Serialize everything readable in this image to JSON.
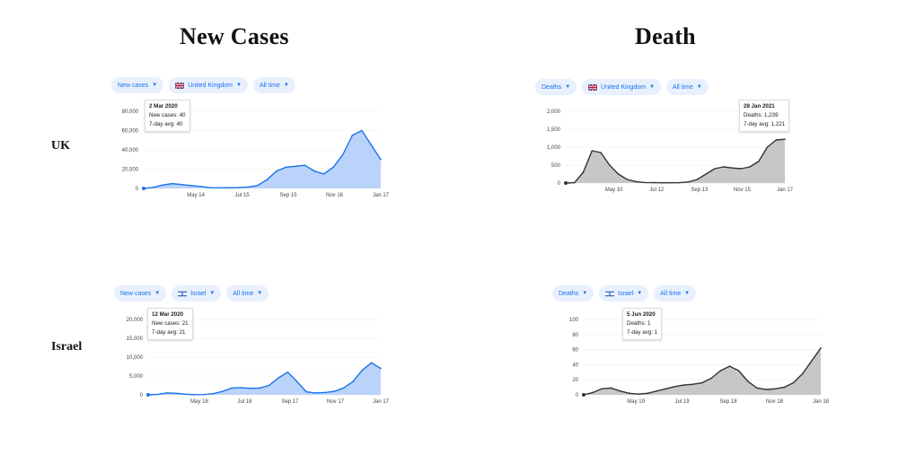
{
  "headings": {
    "left": "New Cases",
    "right": "Death"
  },
  "row_labels": {
    "uk": "UK",
    "israel": "Israel"
  },
  "panels": {
    "uk_cases": {
      "metric": "New cases",
      "country": "United Kingdom",
      "range": "All time",
      "tooltip": {
        "date": "2 Mar 2020",
        "line1": "New cases: 40",
        "line2": "7-day avg: 40"
      }
    },
    "uk_deaths": {
      "metric": "Deaths",
      "country": "United Kingdom",
      "range": "All time",
      "tooltip": {
        "date": "28 Jan 2021",
        "line1": "Deaths: 1,239",
        "line2": "7-day avg: 1,221"
      }
    },
    "il_cases": {
      "metric": "New cases",
      "country": "Israel",
      "range": "All time",
      "tooltip": {
        "date": "12 Mar 2020",
        "line1": "New cases: 21",
        "line2": "7-day avg: 21"
      }
    },
    "il_deaths": {
      "metric": "Deaths",
      "country": "Israel",
      "range": "All time",
      "tooltip": {
        "date": "5 Jun 2020",
        "line1": "Deaths: 1",
        "line2": "7-day avg: 1"
      }
    }
  },
  "colors": {
    "cases_line": "#1a73e8",
    "cases_fill": "#aecbfa",
    "deaths_line": "#333333",
    "deaths_fill": "#bdbdbd",
    "chip_bg": "#e8f0fe",
    "chip_text": "#1a73e8"
  },
  "chart_data": [
    {
      "id": "uk_cases",
      "type": "area",
      "x_ticks": [
        "May 14",
        "Jul 15",
        "Sep 15",
        "Nov 16",
        "Jan 17"
      ],
      "y_ticks": [
        "0",
        "20,000",
        "40,000",
        "60,000",
        "80,000"
      ],
      "ylim": [
        0,
        80000
      ],
      "series": [
        {
          "values": [
            0,
            1000,
            3500,
            5000,
            4000,
            3000,
            2000,
            800,
            600,
            700,
            900,
            1500,
            3000,
            9000,
            18000,
            22000,
            23000,
            24000,
            18000,
            15000,
            22000,
            35000,
            55000,
            60000,
            45000,
            30000
          ]
        }
      ]
    },
    {
      "id": "uk_deaths",
      "type": "area",
      "x_ticks": [
        "May 10",
        "Jul 12",
        "Sep 13",
        "Nov 15",
        "Jan 17"
      ],
      "y_ticks": [
        "0",
        "500",
        "1,000",
        "1,500",
        "2,000"
      ],
      "ylim": [
        0,
        2000
      ],
      "series": [
        {
          "values": [
            0,
            10,
            300,
            900,
            850,
            500,
            250,
            100,
            40,
            15,
            10,
            8,
            8,
            10,
            30,
            100,
            250,
            400,
            450,
            420,
            400,
            450,
            600,
            1000,
            1200,
            1221
          ]
        }
      ]
    },
    {
      "id": "il_cases",
      "type": "area",
      "x_ticks": [
        "May 18",
        "Jul 18",
        "Sep 17",
        "Nov 17",
        "Jan 17"
      ],
      "y_ticks": [
        "0",
        "5,000",
        "10,000",
        "15,000",
        "20,000"
      ],
      "ylim": [
        0,
        20000
      ],
      "series": [
        {
          "values": [
            0,
            100,
            500,
            400,
            150,
            50,
            80,
            300,
            900,
            1800,
            1900,
            1700,
            1800,
            2500,
            4500,
            6000,
            3500,
            800,
            500,
            600,
            900,
            1800,
            3500,
            6500,
            8500,
            7000
          ]
        }
      ]
    },
    {
      "id": "il_deaths",
      "type": "area",
      "x_ticks": [
        "May 19",
        "Jul 19",
        "Sep 18",
        "Nov 18",
        "Jan 18"
      ],
      "y_ticks": [
        "0",
        "20",
        "40",
        "60",
        "80",
        "100"
      ],
      "ylim": [
        0,
        100
      ],
      "series": [
        {
          "values": [
            0,
            3,
            8,
            9,
            5,
            2,
            1,
            2,
            5,
            8,
            11,
            13,
            14,
            16,
            22,
            32,
            38,
            32,
            18,
            9,
            7,
            8,
            10,
            16,
            28,
            45,
            62
          ]
        }
      ]
    }
  ]
}
